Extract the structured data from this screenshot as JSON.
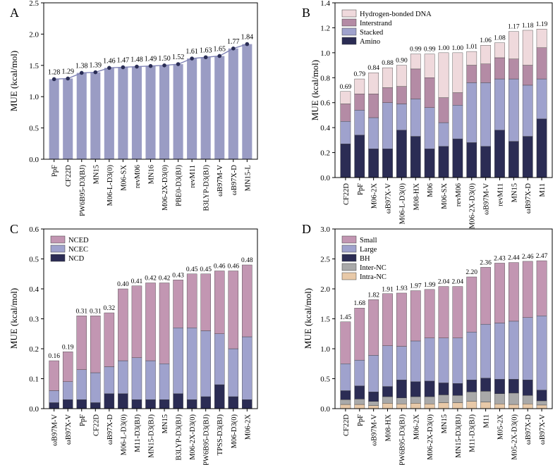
{
  "chart_data": [
    {
      "panel": "A",
      "type": "bar",
      "ylabel": "MUE (kcal/mol)",
      "ylim": [
        0,
        2.5
      ],
      "yticks": [
        "0.0",
        "0.5",
        "1.0",
        "1.5",
        "2.0",
        "2.5"
      ],
      "categories": [
        "PpF",
        "CF22D",
        "PW6B95-D3(BJ)",
        "MN15",
        "M06-L-D3(0)",
        "M06-SX",
        "revM06",
        "MN16",
        "M06-2X-D3(0)",
        "PBE0-D3(BJ)",
        "revM11",
        "B3LYP-D3(BJ)",
        "ωB97M-V",
        "ωB97X-D",
        "MN15-L"
      ],
      "values": [
        1.28,
        1.29,
        1.38,
        1.39,
        1.46,
        1.47,
        1.48,
        1.49,
        1.5,
        1.52,
        1.61,
        1.63,
        1.65,
        1.77,
        1.84
      ],
      "labels": [
        "1.28",
        "1.29",
        "1.38",
        "1.39",
        "1.46",
        "1.47",
        "1.48",
        "1.49",
        "1.50",
        "1.52",
        "1.61",
        "1.63",
        "1.65",
        "1.77",
        "1.84"
      ],
      "colors": {
        "bar": "#9a9cc4",
        "line": "#7f82b5",
        "marker": "#2a2d55"
      }
    },
    {
      "panel": "B",
      "type": "bar",
      "stacked": true,
      "ylabel": "MUE (kcal/mol)",
      "ylim": [
        0,
        1.4
      ],
      "yticks": [
        "0.0",
        "0.2",
        "0.4",
        "0.6",
        "0.8",
        "1.0",
        "1.2",
        "1.4"
      ],
      "legend_position": "top-left",
      "categories": [
        "CF22D",
        "PpF",
        "M06-2X",
        "ωB97X-V",
        "M06-L-D3(0)",
        "M08-HX",
        "M06",
        "M06-SX",
        "revM06",
        "M06-2X-D3(0)",
        "ωB97M-V",
        "revM11",
        "MN15",
        "ωB97X-D",
        "M11"
      ],
      "series": [
        {
          "name": "Amino",
          "color": "#2b2c54",
          "values": [
            0.27,
            0.34,
            0.23,
            0.23,
            0.38,
            0.33,
            0.23,
            0.25,
            0.31,
            0.28,
            0.25,
            0.38,
            0.29,
            0.33,
            0.47
          ]
        },
        {
          "name": "Stacked",
          "color": "#9fa2cd",
          "values": [
            0.18,
            0.2,
            0.25,
            0.37,
            0.21,
            0.3,
            0.33,
            0.19,
            0.27,
            0.48,
            0.51,
            0.41,
            0.5,
            0.41,
            0.32
          ]
        },
        {
          "name": "Interstrand",
          "color": "#b48ba5",
          "values": [
            0.14,
            0.13,
            0.19,
            0.12,
            0.14,
            0.24,
            0.24,
            0.2,
            0.1,
            0.14,
            0.15,
            0.17,
            0.16,
            0.16,
            0.25
          ]
        },
        {
          "name": "Hydrogen-bonded DNA",
          "color": "#efd9dc",
          "values": [
            0.1,
            0.12,
            0.17,
            0.16,
            0.17,
            0.12,
            0.19,
            0.36,
            0.32,
            0.11,
            0.15,
            0.12,
            0.22,
            0.28,
            0.15
          ]
        }
      ],
      "totals": [
        "0.69",
        "0.79",
        "0.84",
        "0.88",
        "0.90",
        "0.99",
        "0.99",
        "1.00",
        "1.00",
        "1.01",
        "1.06",
        "1.08",
        "1.17",
        "1.18",
        "1.19"
      ],
      "total_values": [
        0.69,
        0.79,
        0.84,
        0.88,
        0.9,
        0.99,
        0.99,
        1.0,
        1.0,
        1.01,
        1.06,
        1.08,
        1.17,
        1.18,
        1.19
      ]
    },
    {
      "panel": "C",
      "type": "bar",
      "stacked": true,
      "ylabel": "MUE (kcal/mol)",
      "ylim": [
        0,
        0.6
      ],
      "yticks": [
        "0.0",
        "0.1",
        "0.2",
        "0.3",
        "0.4",
        "0.5",
        "0.6"
      ],
      "legend_position": "top-left",
      "categories": [
        "ωB97M-V",
        "ωB97X-V",
        "PpF",
        "CF22D",
        "ωB97X-D",
        "M06-L-D3(0)",
        "M11-D3(BJ)",
        "MN15-D3(BJ)",
        "MN15",
        "B3LYP-D3(BJ)",
        "M06-2X-D3(0)",
        "PW6B95-D3(BJ)",
        "TPSS-D3(BJ)",
        "M06-D3(0)",
        "M06-2X"
      ],
      "series": [
        {
          "name": "NCD",
          "color": "#2b2c54",
          "values": [
            0.02,
            0.03,
            0.03,
            0.02,
            0.05,
            0.05,
            0.03,
            0.03,
            0.03,
            0.05,
            0.03,
            0.04,
            0.08,
            0.04,
            0.03
          ]
        },
        {
          "name": "NCEC",
          "color": "#9fa2cd",
          "values": [
            0.04,
            0.06,
            0.1,
            0.1,
            0.09,
            0.11,
            0.14,
            0.13,
            0.12,
            0.22,
            0.24,
            0.22,
            0.17,
            0.16,
            0.21
          ]
        },
        {
          "name": "NCED",
          "color": "#c296b2",
          "values": [
            0.1,
            0.1,
            0.18,
            0.19,
            0.18,
            0.24,
            0.24,
            0.26,
            0.27,
            0.16,
            0.18,
            0.19,
            0.21,
            0.26,
            0.24
          ]
        }
      ],
      "totals": [
        "0.16",
        "0.19",
        "0.31",
        "0.31",
        "0.32",
        "0.40",
        "0.41",
        "0.42",
        "0.42",
        "0.43",
        "0.45",
        "0.45",
        "0.46",
        "0.46",
        "0.48"
      ],
      "total_values": [
        0.16,
        0.19,
        0.31,
        0.31,
        0.32,
        0.4,
        0.41,
        0.42,
        0.42,
        0.43,
        0.45,
        0.45,
        0.46,
        0.46,
        0.48
      ]
    },
    {
      "panel": "D",
      "type": "bar",
      "stacked": true,
      "ylabel": "MUE (kcal/mol)",
      "ylim": [
        0,
        3.0
      ],
      "yticks": [
        "0.0",
        "0.5",
        "1.0",
        "1.5",
        "2.0",
        "2.5",
        "3.0"
      ],
      "legend_position": "top-left",
      "categories": [
        "CF22D",
        "PpF",
        "ωB97M-V",
        "M08-HX",
        "PW6B95-D3(BJ)",
        "M06-2X",
        "M06-2X-D3(0)",
        "MN15",
        "MN15-D3(BJ)",
        "M11-D3(BJ)",
        "M11",
        "M05-2X",
        "M05-2X-D3(0)",
        "ωB97X-D",
        "ωB97X-V"
      ],
      "series": [
        {
          "name": "Intra-NC",
          "color": "#e8c9a8",
          "values": [
            0.07,
            0.07,
            0.05,
            0.09,
            0.08,
            0.09,
            0.08,
            0.1,
            0.1,
            0.12,
            0.11,
            0.08,
            0.07,
            0.08,
            0.06
          ]
        },
        {
          "name": "Inter-NC",
          "color": "#a9a9a9",
          "values": [
            0.08,
            0.09,
            0.07,
            0.11,
            0.1,
            0.11,
            0.12,
            0.13,
            0.12,
            0.16,
            0.18,
            0.17,
            0.19,
            0.14,
            0.07
          ]
        },
        {
          "name": "BH",
          "color": "#2b2c54",
          "values": [
            0.15,
            0.22,
            0.16,
            0.17,
            0.3,
            0.25,
            0.26,
            0.2,
            0.2,
            0.2,
            0.22,
            0.24,
            0.23,
            0.26,
            0.18
          ]
        },
        {
          "name": "Large",
          "color": "#9fa2cd",
          "values": [
            0.45,
            0.43,
            0.61,
            0.68,
            0.56,
            0.68,
            0.72,
            0.75,
            0.76,
            0.8,
            0.9,
            0.94,
            0.97,
            1.04,
            1.24
          ]
        },
        {
          "name": "Small",
          "color": "#c296b2",
          "values": [
            0.7,
            0.87,
            0.93,
            0.87,
            0.89,
            0.84,
            0.81,
            0.86,
            0.86,
            0.92,
            0.95,
            1.0,
            0.98,
            0.94,
            0.92
          ]
        }
      ],
      "totals": [
        "1.45",
        "1.68",
        "1.82",
        "1.91",
        "1.93",
        "1.97",
        "1.99",
        "2.04",
        "2.04",
        "2.20",
        "2.36",
        "2.43",
        "2.44",
        "2.46",
        "2.47"
      ],
      "total_values": [
        1.45,
        1.68,
        1.82,
        1.91,
        1.93,
        1.97,
        1.99,
        2.04,
        2.04,
        2.2,
        2.36,
        2.43,
        2.44,
        2.46,
        2.47
      ]
    }
  ]
}
